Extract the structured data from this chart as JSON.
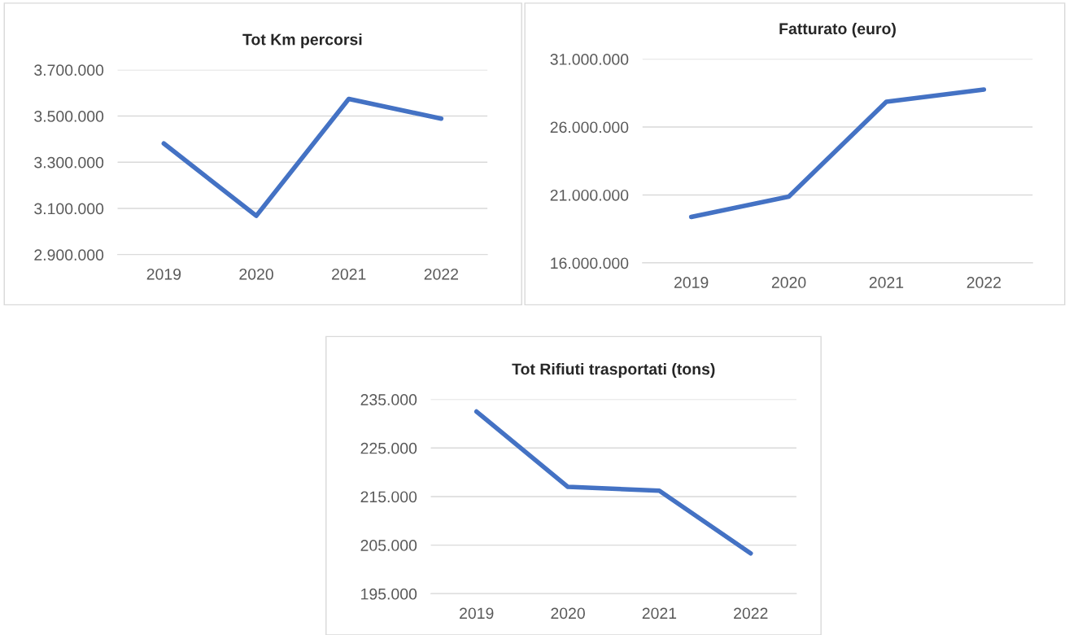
{
  "chart_data": [
    {
      "type": "line",
      "title": "Tot Km percorsi",
      "categories": [
        "2019",
        "2020",
        "2021",
        "2022"
      ],
      "series": [
        {
          "color": "#4472c4",
          "values": [
            3381000,
            3068000,
            3574000,
            3489000
          ]
        }
      ],
      "ylim": [
        2900000,
        3700000
      ],
      "yticks": [
        {
          "value": 2900000,
          "label": "2.900.000"
        },
        {
          "value": 3100000,
          "label": "3.100.000"
        },
        {
          "value": 3300000,
          "label": "3.300.000"
        },
        {
          "value": 3500000,
          "label": "3.500.000"
        },
        {
          "value": 3700000,
          "label": "3.700.000"
        }
      ],
      "grid": "y",
      "marker": "none",
      "line_style": "solid"
    },
    {
      "type": "line",
      "title": "Fatturato (euro)",
      "categories": [
        "2019",
        "2020",
        "2021",
        "2022"
      ],
      "series": [
        {
          "color": "#4472c4",
          "values": [
            19380000,
            20880000,
            27860000,
            28760000
          ]
        }
      ],
      "ylim": [
        16000000,
        31000000
      ],
      "yticks": [
        {
          "value": 16000000,
          "label": "16.000.000"
        },
        {
          "value": 21000000,
          "label": "21.000.000"
        },
        {
          "value": 26000000,
          "label": "26.000.000"
        },
        {
          "value": 31000000,
          "label": "31.000.000"
        }
      ],
      "grid": "y",
      "marker": "none",
      "line_style": "solid"
    },
    {
      "type": "line",
      "title": "Tot Rifiuti trasportati (tons)",
      "categories": [
        "2019",
        "2020",
        "2021",
        "2022"
      ],
      "series": [
        {
          "color": "#4472c4",
          "values": [
            232500,
            217000,
            216200,
            203300
          ]
        }
      ],
      "ylim": [
        195000,
        235000
      ],
      "yticks": [
        {
          "value": 195000,
          "label": "195.000"
        },
        {
          "value": 205000,
          "label": "205.000"
        },
        {
          "value": 215000,
          "label": "215.000"
        },
        {
          "value": 225000,
          "label": "225.000"
        },
        {
          "value": 235000,
          "label": "235.000"
        }
      ],
      "grid": "y",
      "marker": "none",
      "line_style": "solid"
    }
  ]
}
